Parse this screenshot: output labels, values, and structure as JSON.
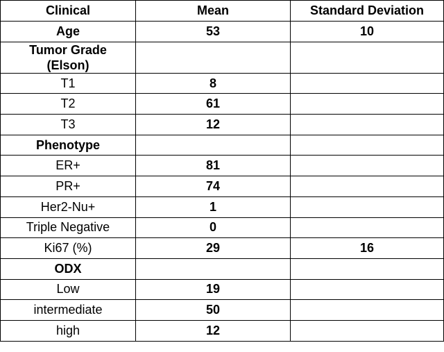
{
  "table": {
    "header": [
      "Clinical",
      "Mean",
      "Standard Deviation"
    ],
    "rows": [
      {
        "label": "Age",
        "bold": true,
        "mean": 53,
        "sd": 10
      },
      {
        "label": "Tumor Grade (Elson)",
        "bold": true
      },
      {
        "label": "T1",
        "mean": 8
      },
      {
        "label": "T2",
        "mean": 61
      },
      {
        "label": "T3",
        "mean": 12
      },
      {
        "label": "Phenotype",
        "bold": true
      },
      {
        "label": "ER+",
        "mean": 81
      },
      {
        "label": "PR+",
        "mean": 74
      },
      {
        "label": "Her2-Nu+",
        "mean": 1
      },
      {
        "label": "Triple Negative",
        "mean": 0
      },
      {
        "label": "Ki67 (%)",
        "mean": 29,
        "sd": 16
      },
      {
        "label": "ODX",
        "bold": true
      },
      {
        "label": "Low",
        "mean": 19
      },
      {
        "label": "intermediate",
        "mean": 50
      },
      {
        "label": "high",
        "mean": 12
      }
    ]
  }
}
